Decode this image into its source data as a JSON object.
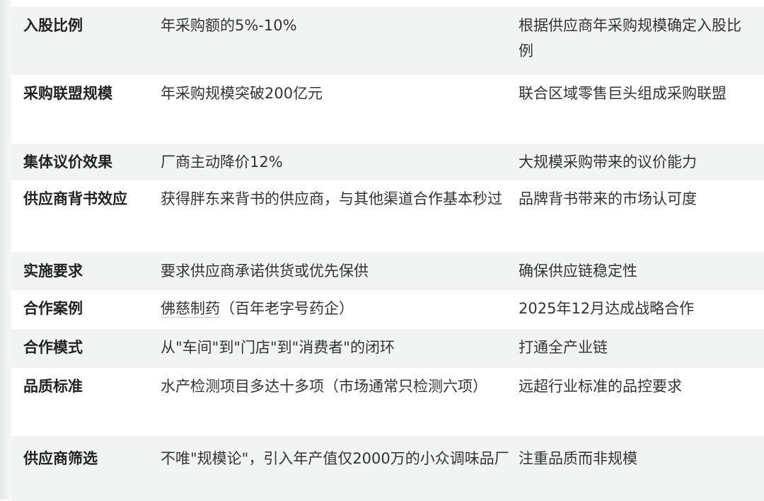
{
  "rows": [
    {
      "item": "入股比例",
      "content": "年采购额的5%-10%",
      "note": "根据供应商年采购规模确定入股比例"
    },
    {
      "item": "采购联盟规模",
      "content": "年采购规模突破200亿元",
      "note": "联合区域零售巨头组成采购联盟"
    },
    {
      "item": "集体议价效果",
      "content": "厂商主动降价12%",
      "note": "大规模采购带来的议价能力"
    },
    {
      "item": "供应商背书效应",
      "content": "获得胖东来背书的供应商，与其他渠道合作基本秒过",
      "note": "品牌背书带来的市场认可度"
    },
    {
      "item": "实施要求",
      "content": "要求供应商承诺供货或优先保供",
      "note": "确保供应链稳定性"
    },
    {
      "item": "合作案例",
      "content_link": "佛慈制药",
      "content": "（百年老字号药企）",
      "note": "2025年12月达成战略合作"
    },
    {
      "item": "合作模式",
      "content": "从\"车间\"到\"门店\"到\"消费者\"的闭环",
      "note": "打通全产业链"
    },
    {
      "item": "品质标准",
      "content": "水产检测项目多达十多项（市场通常只检测六项）",
      "note": "远超行业标准的品控要求"
    },
    {
      "item": "供应商筛选",
      "content": "不唯\"规模论\"，引入年产值仅2000万的小众调味品厂",
      "note": "注重品质而非规模"
    }
  ]
}
